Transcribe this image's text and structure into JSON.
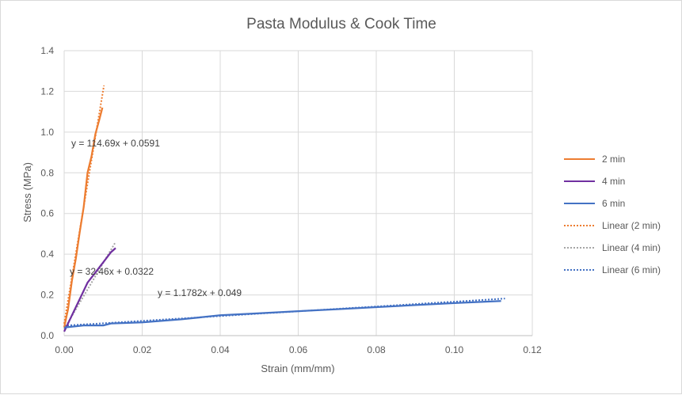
{
  "chart_data": {
    "type": "line",
    "title": "Pasta Modulus & Cook Time",
    "xlabel": "Strain (mm/mm)",
    "ylabel": "Stress (MPa)",
    "xlim": [
      0,
      0.12
    ],
    "ylim": [
      0,
      1.4
    ],
    "x_ticks": [
      "0.00",
      "0.02",
      "0.04",
      "0.06",
      "0.08",
      "0.10",
      "0.12"
    ],
    "y_ticks": [
      "0.0",
      "0.2",
      "0.4",
      "0.6",
      "0.8",
      "1.0",
      "1.2",
      "1.4"
    ],
    "grid": true,
    "legend_position": "right",
    "series": [
      {
        "name": "2 min",
        "color": "#ED7D31",
        "points": [
          [
            0.0,
            0.04
          ],
          [
            0.001,
            0.13
          ],
          [
            0.002,
            0.27
          ],
          [
            0.003,
            0.38
          ],
          [
            0.004,
            0.51
          ],
          [
            0.005,
            0.63
          ],
          [
            0.006,
            0.8
          ],
          [
            0.007,
            0.88
          ],
          [
            0.008,
            0.99
          ],
          [
            0.009,
            1.06
          ],
          [
            0.0098,
            1.12
          ]
        ]
      },
      {
        "name": "4 min",
        "color": "#7030A0",
        "points": [
          [
            0.0,
            0.02
          ],
          [
            0.002,
            0.1
          ],
          [
            0.004,
            0.18
          ],
          [
            0.006,
            0.26
          ],
          [
            0.008,
            0.31
          ],
          [
            0.01,
            0.36
          ],
          [
            0.012,
            0.41
          ],
          [
            0.0132,
            0.43
          ]
        ]
      },
      {
        "name": "6 min",
        "color": "#4472C4",
        "points": [
          [
            0.0,
            0.04
          ],
          [
            0.005,
            0.05
          ],
          [
            0.01,
            0.05
          ],
          [
            0.012,
            0.06
          ],
          [
            0.02,
            0.065
          ],
          [
            0.03,
            0.08
          ],
          [
            0.04,
            0.1
          ],
          [
            0.05,
            0.11
          ],
          [
            0.06,
            0.12
          ],
          [
            0.07,
            0.13
          ],
          [
            0.08,
            0.14
          ],
          [
            0.09,
            0.15
          ],
          [
            0.1,
            0.16
          ],
          [
            0.112,
            0.17
          ]
        ]
      }
    ],
    "trendlines": [
      {
        "name": "Linear (2 min)",
        "color": "#ED7D31",
        "slope": 114.69,
        "intercept": 0.0591,
        "x_range": [
          0,
          0.0102
        ],
        "equation": "y = 114.69x + 0.0591"
      },
      {
        "name": "Linear (4 min)",
        "color": "#A5A5A5",
        "slope": 32.46,
        "intercept": 0.0322,
        "x_range": [
          0,
          0.0132
        ],
        "equation": "y = 32.46x + 0.0322"
      },
      {
        "name": "Linear (6 min)",
        "color": "#4472C4",
        "slope": 1.1782,
        "intercept": 0.049,
        "x_range": [
          0,
          0.113
        ],
        "equation": "y = 1.1782x + 0.049"
      }
    ]
  }
}
